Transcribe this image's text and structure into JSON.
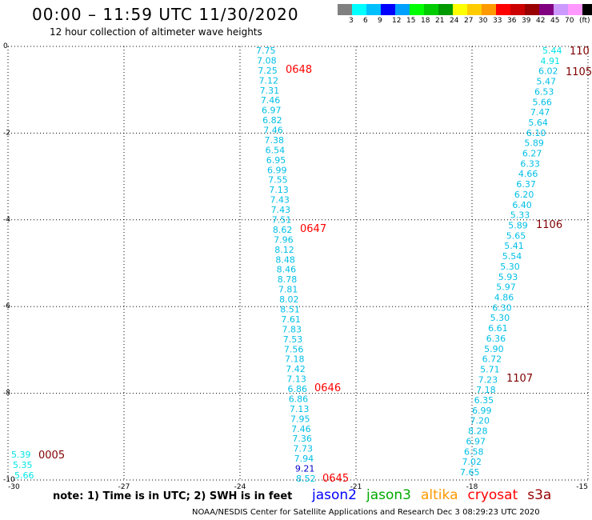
{
  "title": "00:00 – 11:59 UTC 11/30/2020",
  "subtitle": "12 hour collection of altimeter wave heights",
  "legend": {
    "colors": [
      "#808080",
      "#00ffff",
      "#00bfff",
      "#0000ff",
      "#00a0ff",
      "#00ff00",
      "#00cc00",
      "#009900",
      "#ffff00",
      "#ffcc00",
      "#ff9900",
      "#ff0000",
      "#cc0000",
      "#990000",
      "#800080",
      "#cc99ff",
      "#ff99ff",
      "#000000"
    ],
    "labels": [
      "3",
      "6",
      "9",
      "12",
      "15",
      "18",
      "21",
      "24",
      "27",
      "30",
      "33",
      "36",
      "39",
      "42",
      "45",
      "70",
      "(ft)"
    ]
  },
  "axes": {
    "x_ticks": [
      "-30",
      "-27",
      "-24",
      "-21",
      "-18",
      "-15"
    ],
    "y_ticks": [
      "0",
      "-2",
      "-4",
      "-6",
      "-8",
      "-10"
    ]
  },
  "tracks": {
    "center": [
      {
        "v": "7.75",
        "c": "#00bfe6"
      },
      {
        "v": "7.08",
        "c": "#00bfe6"
      },
      {
        "v": "7.25",
        "c": "#00bfe6"
      },
      {
        "v": "7.12",
        "c": "#00bfe6"
      },
      {
        "v": "7.31",
        "c": "#00bfe6"
      },
      {
        "v": "7.46",
        "c": "#00bfe6"
      },
      {
        "v": "6.97",
        "c": "#00bfe6"
      },
      {
        "v": "6.82",
        "c": "#00bfe6"
      },
      {
        "v": "7.46",
        "c": "#00bfe6"
      },
      {
        "v": "7.38",
        "c": "#00bfe6"
      },
      {
        "v": "6.54",
        "c": "#00bfe6"
      },
      {
        "v": "6.95",
        "c": "#00bfe6"
      },
      {
        "v": "6.99",
        "c": "#00bfe6"
      },
      {
        "v": "7.55",
        "c": "#00bfe6"
      },
      {
        "v": "7.13",
        "c": "#00bfe6"
      },
      {
        "v": "7.43",
        "c": "#00bfe6"
      },
      {
        "v": "7.43",
        "c": "#00bfe6"
      },
      {
        "v": "7.51",
        "c": "#00bfe6"
      },
      {
        "v": "8.62",
        "c": "#00bfe6"
      },
      {
        "v": "7.96",
        "c": "#00bfe6"
      },
      {
        "v": "8.12",
        "c": "#00bfe6"
      },
      {
        "v": "8.48",
        "c": "#00bfe6"
      },
      {
        "v": "8.46",
        "c": "#00bfe6"
      },
      {
        "v": "8.78",
        "c": "#00bfe6"
      },
      {
        "v": "7.81",
        "c": "#00bfe6"
      },
      {
        "v": "8.02",
        "c": "#00bfe6"
      },
      {
        "v": "8.51",
        "c": "#00bfe6"
      },
      {
        "v": "7.61",
        "c": "#00bfe6"
      },
      {
        "v": "7.83",
        "c": "#00bfe6"
      },
      {
        "v": "7.53",
        "c": "#00bfe6"
      },
      {
        "v": "7.56",
        "c": "#00bfe6"
      },
      {
        "v": "7.18",
        "c": "#00bfe6"
      },
      {
        "v": "7.42",
        "c": "#00bfe6"
      },
      {
        "v": "7.13",
        "c": "#00bfe6"
      },
      {
        "v": "6.86",
        "c": "#00bfe6"
      },
      {
        "v": "6.86",
        "c": "#00bfe6"
      },
      {
        "v": "7.13",
        "c": "#00bfe6"
      },
      {
        "v": "7.95",
        "c": "#00bfe6"
      },
      {
        "v": "7.46",
        "c": "#00bfe6"
      },
      {
        "v": "7.36",
        "c": "#00bfe6"
      },
      {
        "v": "7.73",
        "c": "#00bfe6"
      },
      {
        "v": "7.94",
        "c": "#00bfe6"
      },
      {
        "v": "9.21",
        "c": "#0000cc"
      },
      {
        "v": "8.52",
        "c": "#00bfe6"
      }
    ],
    "right": [
      {
        "v": "5.44",
        "c": "#00e5e5"
      },
      {
        "v": "4.91",
        "c": "#00e5e5"
      },
      {
        "v": "6.02",
        "c": "#00bfe6"
      },
      {
        "v": "5.47",
        "c": "#00bfe6"
      },
      {
        "v": "6.53",
        "c": "#00bfe6"
      },
      {
        "v": "5.66",
        "c": "#00bfe6"
      },
      {
        "v": "7.47",
        "c": "#00bfe6"
      },
      {
        "v": "5.64",
        "c": "#00bfe6"
      },
      {
        "v": "6.10",
        "c": "#00bfe6"
      },
      {
        "v": "5.89",
        "c": "#00bfe6"
      },
      {
        "v": "6.27",
        "c": "#00bfe6"
      },
      {
        "v": "6.33",
        "c": "#00bfe6"
      },
      {
        "v": "4.66",
        "c": "#00bfe6"
      },
      {
        "v": "6.37",
        "c": "#00bfe6"
      },
      {
        "v": "6.20",
        "c": "#00bfe6"
      },
      {
        "v": "6.40",
        "c": "#00bfe6"
      },
      {
        "v": "5.33",
        "c": "#00bfe6"
      },
      {
        "v": "5.89",
        "c": "#00bfe6"
      },
      {
        "v": "5.65",
        "c": "#00bfe6"
      },
      {
        "v": "5.41",
        "c": "#00bfe6"
      },
      {
        "v": "5.54",
        "c": "#00bfe6"
      },
      {
        "v": "5.30",
        "c": "#00bfe6"
      },
      {
        "v": "5.93",
        "c": "#00bfe6"
      },
      {
        "v": "5.97",
        "c": "#00bfe6"
      },
      {
        "v": "4.86",
        "c": "#00bfe6"
      },
      {
        "v": "6.30",
        "c": "#00bfe6"
      },
      {
        "v": "5.30",
        "c": "#00bfe6"
      },
      {
        "v": "6.61",
        "c": "#00bfe6"
      },
      {
        "v": "6.36",
        "c": "#00bfe6"
      },
      {
        "v": "5.90",
        "c": "#00bfe6"
      },
      {
        "v": "6.72",
        "c": "#00bfe6"
      },
      {
        "v": "5.71",
        "c": "#00bfe6"
      },
      {
        "v": "7.23",
        "c": "#00bfe6"
      },
      {
        "v": "7.18",
        "c": "#00bfe6"
      },
      {
        "v": "6.35",
        "c": "#00bfe6"
      },
      {
        "v": "6.99",
        "c": "#00bfe6"
      },
      {
        "v": "7.20",
        "c": "#00bfe6"
      },
      {
        "v": "8.28",
        "c": "#00bfe6"
      },
      {
        "v": "6.97",
        "c": "#00bfe6"
      },
      {
        "v": "6.58",
        "c": "#00bfe6"
      },
      {
        "v": "7.02",
        "c": "#00bfe6"
      },
      {
        "v": "7.65",
        "c": "#00bfe6"
      }
    ],
    "left": [
      {
        "v": "5.39",
        "c": "#00e5e5"
      },
      {
        "v": "5.35",
        "c": "#00e5e5"
      },
      {
        "v": "5.66",
        "c": "#00e5e5"
      }
    ]
  },
  "time_labels": [
    {
      "t": "0648",
      "c": "#ff0000"
    },
    {
      "t": "0647",
      "c": "#ff0000"
    },
    {
      "t": "0646",
      "c": "#ff0000"
    },
    {
      "t": "0645",
      "c": "#ff0000"
    },
    {
      "t": "110",
      "c": "#800000"
    },
    {
      "t": "1105",
      "c": "#800000"
    },
    {
      "t": "1106",
      "c": "#800000"
    },
    {
      "t": "1107",
      "c": "#800000"
    },
    {
      "t": "0005",
      "c": "#800000"
    }
  ],
  "note": "note:  1) Time is in UTC; 2) SWH is in feet",
  "satellites": [
    {
      "name": "jason2",
      "c": "#0000ff"
    },
    {
      "name": "jason3",
      "c": "#00aa00"
    },
    {
      "name": "altika",
      "c": "#ff9900"
    },
    {
      "name": "cryosat",
      "c": "#ff0000"
    },
    {
      "name": "s3a",
      "c": "#990000"
    }
  ],
  "credit": "NOAA/NESDIS Center for Satellite Applications and Research    Dec  3 08:29:23 UTC 2020"
}
